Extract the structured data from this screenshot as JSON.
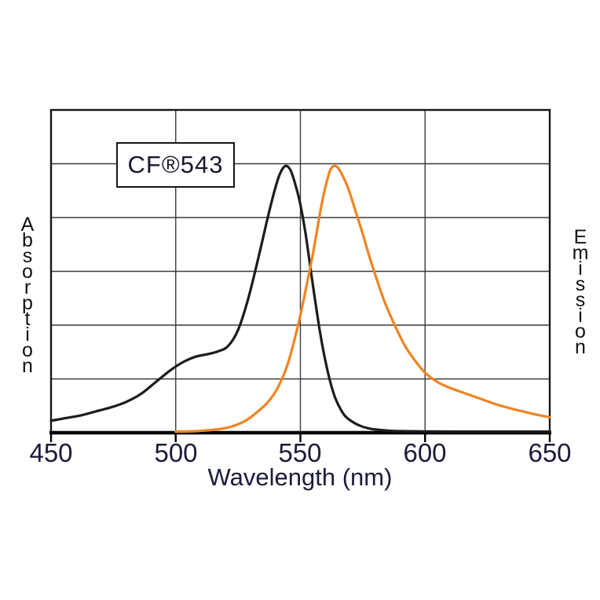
{
  "label_box": {
    "text": "CF®543"
  },
  "axes": {
    "x_label": "Wavelength (nm)",
    "left_label": "Absorption",
    "right_label": "Emission",
    "x_tick_labels": [
      "450",
      "500",
      "550",
      "600",
      "650"
    ]
  },
  "colors": {
    "absorption": "#1c1c1c",
    "emission": "#f08421",
    "grid": "#3a3a3a",
    "border": "#161616",
    "axis": "#000000",
    "tick_text": "#1b1b3a",
    "background": "#ffffff"
  },
  "chart_data": {
    "type": "line",
    "title": "CF®543 absorption and emission spectra",
    "xlabel": "Wavelength (nm)",
    "ylabel_left": "Absorption",
    "ylabel_right": "Emission",
    "x_range": [
      450,
      650
    ],
    "x_ticks": [
      450,
      500,
      550,
      600,
      650
    ],
    "y_range": [
      0,
      1.21
    ],
    "y_gridline_rows": 6,
    "grid": true,
    "legend": "none",
    "series": [
      {
        "name": "Absorption",
        "color": "#1c1c1c",
        "peak_nm": 544,
        "points": [
          [
            450,
            0.045
          ],
          [
            456,
            0.055
          ],
          [
            462,
            0.065
          ],
          [
            468,
            0.08
          ],
          [
            474,
            0.095
          ],
          [
            480,
            0.115
          ],
          [
            486,
            0.145
          ],
          [
            492,
            0.19
          ],
          [
            498,
            0.235
          ],
          [
            503,
            0.265
          ],
          [
            508,
            0.285
          ],
          [
            513,
            0.295
          ],
          [
            517,
            0.305
          ],
          [
            521,
            0.325
          ],
          [
            525,
            0.385
          ],
          [
            529,
            0.5
          ],
          [
            533,
            0.65
          ],
          [
            537,
            0.81
          ],
          [
            540,
            0.92
          ],
          [
            542,
            0.975
          ],
          [
            544,
            1.0
          ],
          [
            546,
            0.985
          ],
          [
            548,
            0.93
          ],
          [
            550,
            0.855
          ],
          [
            552,
            0.75
          ],
          [
            554,
            0.62
          ],
          [
            556,
            0.49
          ],
          [
            558,
            0.37
          ],
          [
            560,
            0.27
          ],
          [
            562,
            0.19
          ],
          [
            564,
            0.13
          ],
          [
            566,
            0.09
          ],
          [
            568,
            0.062
          ],
          [
            571,
            0.04
          ],
          [
            574,
            0.026
          ],
          [
            577,
            0.017
          ],
          [
            580,
            0.012
          ],
          [
            585,
            0.008
          ],
          [
            590,
            0.006
          ],
          [
            600,
            0.005
          ],
          [
            615,
            0.004
          ],
          [
            635,
            0.004
          ],
          [
            650,
            0.004
          ]
        ]
      },
      {
        "name": "Emission",
        "color": "#f08421",
        "peak_nm": 564,
        "points": [
          [
            500,
            0.004
          ],
          [
            508,
            0.006
          ],
          [
            516,
            0.012
          ],
          [
            522,
            0.022
          ],
          [
            528,
            0.045
          ],
          [
            533,
            0.08
          ],
          [
            537,
            0.115
          ],
          [
            541,
            0.17
          ],
          [
            545,
            0.26
          ],
          [
            549,
            0.4
          ],
          [
            552,
            0.53
          ],
          [
            555,
            0.67
          ],
          [
            558,
            0.83
          ],
          [
            560,
            0.92
          ],
          [
            562,
            0.985
          ],
          [
            564,
            1.0
          ],
          [
            566,
            0.98
          ],
          [
            569,
            0.92
          ],
          [
            572,
            0.835
          ],
          [
            575,
            0.745
          ],
          [
            578,
            0.65
          ],
          [
            581,
            0.565
          ],
          [
            584,
            0.485
          ],
          [
            588,
            0.4
          ],
          [
            592,
            0.325
          ],
          [
            596,
            0.27
          ],
          [
            600,
            0.225
          ],
          [
            605,
            0.19
          ],
          [
            610,
            0.168
          ],
          [
            616,
            0.148
          ],
          [
            622,
            0.128
          ],
          [
            628,
            0.108
          ],
          [
            634,
            0.092
          ],
          [
            640,
            0.078
          ],
          [
            645,
            0.067
          ],
          [
            650,
            0.058
          ]
        ]
      }
    ]
  }
}
